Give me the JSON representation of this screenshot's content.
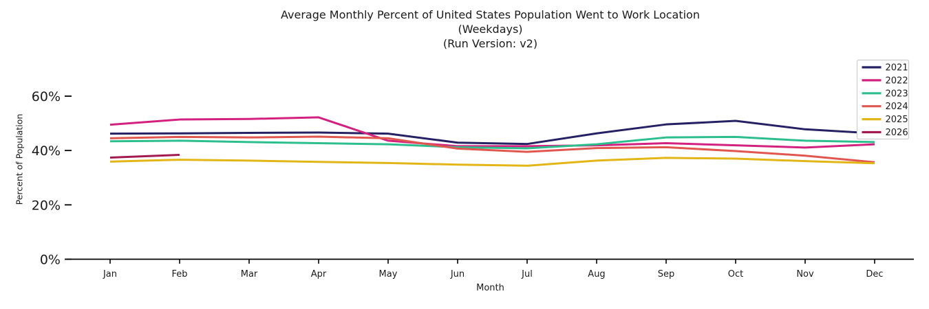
{
  "title": {
    "line1": "Average Monthly Percent of United States Population Went to Work Location",
    "line2": "(Weekdays)",
    "line3": "(Run Version: v2)"
  },
  "chart_data": {
    "type": "line",
    "categories": [
      "Jan",
      "Feb",
      "Mar",
      "Apr",
      "May",
      "Jun",
      "Jul",
      "Aug",
      "Sep",
      "Oct",
      "Nov",
      "Dec"
    ],
    "series": [
      {
        "name": "2021",
        "color": "#252163",
        "values": [
          46.2,
          46.3,
          46.5,
          46.6,
          46.2,
          42.9,
          42.4,
          46.3,
          49.6,
          50.9,
          47.8,
          46.3
        ]
      },
      {
        "name": "2022",
        "color": "#d2217e",
        "values": [
          49.5,
          51.4,
          51.6,
          52.2,
          43.6,
          41.6,
          41.6,
          41.9,
          42.7,
          41.9,
          41.1,
          42.3
        ]
      },
      {
        "name": "2023",
        "color": "#2dbe8d",
        "values": [
          43.4,
          43.6,
          43.1,
          42.7,
          42.3,
          41.2,
          40.8,
          42.3,
          44.8,
          45.0,
          43.6,
          43.1
        ]
      },
      {
        "name": "2024",
        "color": "#e0574f",
        "values": [
          44.5,
          45.0,
          44.8,
          45.1,
          44.5,
          40.7,
          39.5,
          40.9,
          41.2,
          39.8,
          38.1,
          35.7
        ]
      },
      {
        "name": "2025",
        "color": "#e2b616",
        "values": [
          35.9,
          36.6,
          36.3,
          35.8,
          35.4,
          34.8,
          34.4,
          36.3,
          37.3,
          37.0,
          36.1,
          35.3
        ]
      },
      {
        "name": "2026",
        "color": "#a31a4f",
        "values": [
          37.4,
          38.4,
          null,
          null,
          null,
          null,
          null,
          null,
          null,
          null,
          null,
          null
        ]
      }
    ],
    "xlabel": "Month",
    "ylabel": "Percent of Population",
    "yticks": [
      {
        "value": 0,
        "label": "0%"
      },
      {
        "value": 20,
        "label": "20%"
      },
      {
        "value": 40,
        "label": "40%"
      },
      {
        "value": 60,
        "label": "60%"
      }
    ],
    "ylim": [
      0,
      75
    ],
    "grid": false,
    "legend_position": "upper right",
    "legend_entries": [
      "2021",
      "2022",
      "2023",
      "2024",
      "2025",
      "2026"
    ],
    "axis_color": "#000000"
  }
}
